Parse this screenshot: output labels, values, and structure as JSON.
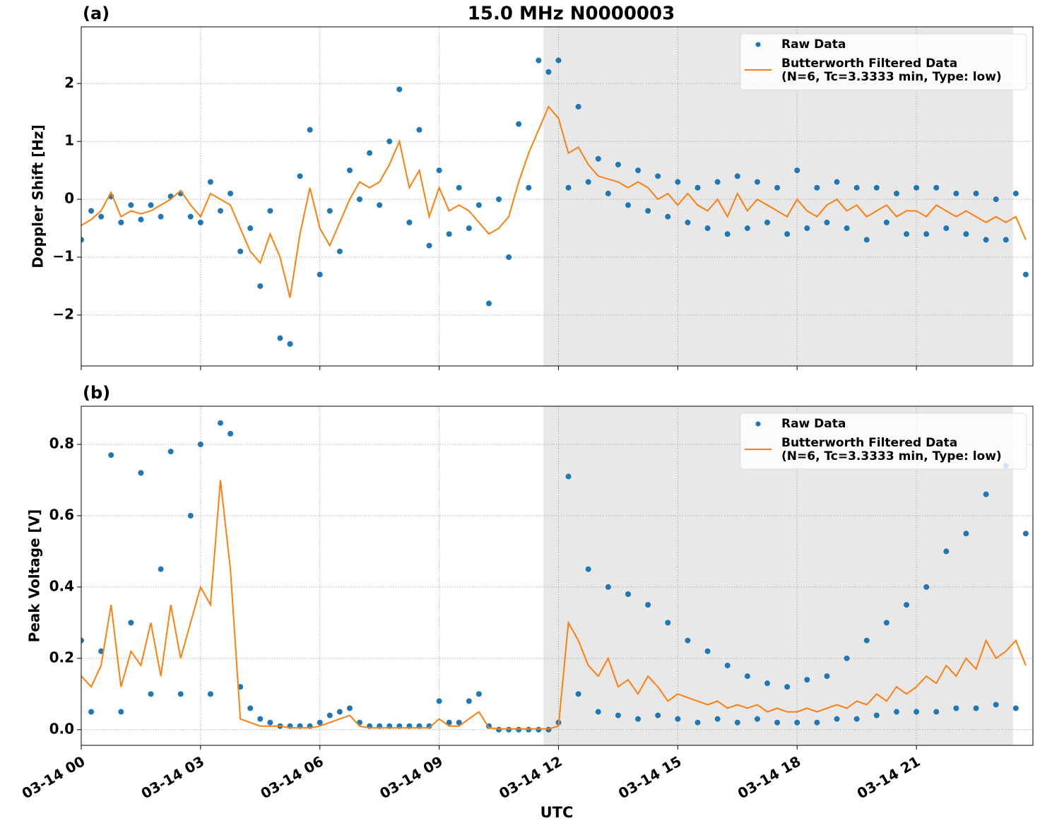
{
  "chart_data": [
    {
      "type": "line",
      "title": "15.0 MHz N0000003",
      "label": "(a)",
      "ylabel": "Doppler Shift [Hz]",
      "xlim": [
        0,
        23.93
      ],
      "xticks": [
        0,
        3,
        6,
        9,
        12,
        15,
        18,
        21
      ],
      "ylim": [
        -2.88,
        2.98
      ],
      "yticks": [
        {
          "value": -2,
          "label": "−2"
        },
        {
          "value": -1,
          "label": "−1"
        },
        0,
        1,
        2
      ],
      "grid": true,
      "legend": "upper right",
      "shaded_span": [
        11.62,
        23.43
      ],
      "shade_color": "#e8e8e8",
      "x": [
        0,
        0.25,
        0.5,
        0.75,
        1,
        1.25,
        1.5,
        1.75,
        2,
        2.25,
        2.5,
        2.75,
        3,
        3.25,
        3.5,
        3.75,
        4,
        4.25,
        4.5,
        4.75,
        5,
        5.25,
        5.5,
        5.75,
        6,
        6.25,
        6.5,
        6.75,
        7,
        7.25,
        7.5,
        7.75,
        8,
        8.25,
        8.5,
        8.75,
        9,
        9.25,
        9.5,
        9.75,
        10,
        10.25,
        10.5,
        10.75,
        11,
        11.25,
        11.5,
        11.75,
        12,
        12.25,
        12.5,
        12.75,
        13,
        13.25,
        13.5,
        13.75,
        14,
        14.25,
        14.5,
        14.75,
        15,
        15.25,
        15.5,
        15.75,
        16,
        16.25,
        16.5,
        16.75,
        17,
        17.25,
        17.5,
        17.75,
        18,
        18.25,
        18.5,
        18.75,
        19,
        19.25,
        19.5,
        19.75,
        20,
        20.25,
        20.5,
        20.75,
        21,
        21.25,
        21.5,
        21.75,
        22,
        22.25,
        22.5,
        22.75,
        23,
        23.25,
        23.5,
        23.75
      ],
      "series": [
        {
          "name": "Raw Data",
          "style": "scatter",
          "color": "#1f77b4",
          "values": [
            -0.7,
            -0.2,
            -0.3,
            0.05,
            -0.4,
            -0.1,
            -0.35,
            -0.1,
            -0.3,
            0.05,
            0.1,
            -0.3,
            -0.4,
            0.3,
            -0.2,
            0.1,
            -0.9,
            -0.5,
            -1.5,
            -0.2,
            -2.4,
            -2.5,
            0.4,
            1.2,
            -1.3,
            -0.2,
            -0.9,
            0.5,
            0.0,
            0.8,
            -0.1,
            1.0,
            1.9,
            -0.4,
            1.2,
            -0.8,
            0.5,
            -0.6,
            0.2,
            -0.5,
            -0.1,
            -1.8,
            0.0,
            -1.0,
            1.3,
            0.2,
            2.4,
            2.2,
            2.4,
            0.2,
            1.6,
            0.3,
            0.7,
            0.1,
            0.6,
            -0.1,
            0.5,
            -0.2,
            0.4,
            -0.3,
            0.3,
            -0.4,
            0.2,
            -0.5,
            0.3,
            -0.6,
            0.4,
            -0.5,
            0.3,
            -0.4,
            0.2,
            -0.6,
            0.5,
            -0.5,
            0.2,
            -0.4,
            0.3,
            -0.5,
            0.2,
            -0.7,
            0.2,
            -0.4,
            0.1,
            -0.6,
            0.2,
            -0.6,
            0.2,
            -0.5,
            0.1,
            -0.6,
            0.1,
            -0.7,
            0.0,
            -0.7,
            0.1,
            -1.3
          ]
        },
        {
          "name": "Butterworth Filtered Data\n(N=6, Tc=3.3333 min, Type: low)",
          "style": "line",
          "color": "#ff7f0e",
          "values": [
            -0.45,
            -0.35,
            -0.2,
            0.12,
            -0.3,
            -0.2,
            -0.25,
            -0.2,
            -0.1,
            0.0,
            0.15,
            -0.1,
            -0.3,
            0.1,
            0.0,
            -0.1,
            -0.5,
            -0.9,
            -1.1,
            -0.6,
            -1.0,
            -1.7,
            -0.6,
            0.2,
            -0.5,
            -0.8,
            -0.4,
            0.0,
            0.3,
            0.2,
            0.3,
            0.6,
            1.0,
            0.2,
            0.5,
            -0.3,
            0.2,
            -0.2,
            -0.1,
            -0.2,
            -0.4,
            -0.6,
            -0.5,
            -0.3,
            0.3,
            0.8,
            1.2,
            1.6,
            1.4,
            0.8,
            0.9,
            0.6,
            0.4,
            0.35,
            0.3,
            0.2,
            0.3,
            0.2,
            0.0,
            0.1,
            -0.1,
            0.1,
            -0.1,
            -0.2,
            0.0,
            -0.3,
            0.1,
            -0.2,
            0.0,
            -0.1,
            -0.2,
            -0.3,
            0.0,
            -0.2,
            -0.3,
            -0.1,
            0.0,
            -0.2,
            -0.1,
            -0.3,
            -0.2,
            -0.1,
            -0.3,
            -0.2,
            -0.2,
            -0.3,
            -0.1,
            -0.2,
            -0.3,
            -0.2,
            -0.3,
            -0.4,
            -0.3,
            -0.4,
            -0.3,
            -0.7
          ]
        }
      ]
    },
    {
      "type": "line",
      "label": "(b)",
      "ylabel": "Peak Voltage [V]",
      "xlabel": "UTC",
      "xlim": [
        0,
        23.93
      ],
      "xticks": [
        {
          "value": 0,
          "label": "03-14 00"
        },
        {
          "value": 3,
          "label": "03-14 03"
        },
        {
          "value": 6,
          "label": "03-14 06"
        },
        {
          "value": 9,
          "label": "03-14 09"
        },
        {
          "value": 12,
          "label": "03-14 12"
        },
        {
          "value": 15,
          "label": "03-14 15"
        },
        {
          "value": 18,
          "label": "03-14 18"
        },
        {
          "value": 21,
          "label": "03-14 21"
        }
      ],
      "ylim": [
        -0.044,
        0.907
      ],
      "yticks": [
        {
          "value": 0,
          "label": "0.0"
        },
        0.2,
        0.4,
        0.6,
        0.8
      ],
      "grid": true,
      "legend": "upper right",
      "shaded_span": [
        11.62,
        23.43
      ],
      "shade_color": "#e8e8e8",
      "x": [
        0,
        0.25,
        0.5,
        0.75,
        1,
        1.25,
        1.5,
        1.75,
        2,
        2.25,
        2.5,
        2.75,
        3,
        3.25,
        3.5,
        3.75,
        4,
        4.25,
        4.5,
        4.75,
        5,
        5.25,
        5.5,
        5.75,
        6,
        6.25,
        6.5,
        6.75,
        7,
        7.25,
        7.5,
        7.75,
        8,
        8.25,
        8.5,
        8.75,
        9,
        9.25,
        9.5,
        9.75,
        10,
        10.25,
        10.5,
        10.75,
        11,
        11.25,
        11.5,
        11.75,
        12,
        12.25,
        12.5,
        12.75,
        13,
        13.25,
        13.5,
        13.75,
        14,
        14.25,
        14.5,
        14.75,
        15,
        15.25,
        15.5,
        15.75,
        16,
        16.25,
        16.5,
        16.75,
        17,
        17.25,
        17.5,
        17.75,
        18,
        18.25,
        18.5,
        18.75,
        19,
        19.25,
        19.5,
        19.75,
        20,
        20.25,
        20.5,
        20.75,
        21,
        21.25,
        21.5,
        21.75,
        22,
        22.25,
        22.5,
        22.75,
        23,
        23.25,
        23.5,
        23.75
      ],
      "series": [
        {
          "name": "Raw Data",
          "style": "scatter",
          "color": "#1f77b4",
          "values": [
            0.25,
            0.05,
            0.22,
            0.77,
            0.05,
            0.3,
            0.72,
            0.1,
            0.45,
            0.78,
            0.1,
            0.6,
            0.8,
            0.1,
            0.86,
            0.83,
            0.12,
            0.06,
            0.03,
            0.02,
            0.01,
            0.01,
            0.01,
            0.01,
            0.02,
            0.04,
            0.05,
            0.06,
            0.02,
            0.01,
            0.01,
            0.01,
            0.01,
            0.01,
            0.01,
            0.01,
            0.08,
            0.02,
            0.02,
            0.08,
            0.1,
            0.01,
            0.0,
            0.0,
            0.0,
            0.0,
            0.0,
            0.0,
            0.02,
            0.71,
            0.1,
            0.45,
            0.05,
            0.4,
            0.04,
            0.38,
            0.03,
            0.35,
            0.04,
            0.3,
            0.03,
            0.25,
            0.02,
            0.22,
            0.03,
            0.18,
            0.02,
            0.15,
            0.03,
            0.13,
            0.02,
            0.12,
            0.02,
            0.14,
            0.02,
            0.15,
            0.03,
            0.2,
            0.03,
            0.25,
            0.04,
            0.3,
            0.05,
            0.35,
            0.05,
            0.4,
            0.05,
            0.5,
            0.06,
            0.55,
            0.06,
            0.66,
            0.07,
            0.74,
            0.06,
            0.55
          ]
        },
        {
          "name": "Butterworth Filtered Data\n(N=6, Tc=3.3333 min, Type: low)",
          "style": "line",
          "color": "#ff7f0e",
          "values": [
            0.15,
            0.12,
            0.18,
            0.35,
            0.12,
            0.22,
            0.18,
            0.3,
            0.15,
            0.35,
            0.2,
            0.3,
            0.4,
            0.35,
            0.7,
            0.45,
            0.03,
            0.02,
            0.01,
            0.01,
            0.01,
            0.005,
            0.005,
            0.005,
            0.01,
            0.02,
            0.03,
            0.04,
            0.01,
            0.005,
            0.005,
            0.005,
            0.005,
            0.005,
            0.005,
            0.005,
            0.03,
            0.01,
            0.01,
            0.03,
            0.05,
            0.005,
            0.002,
            0.002,
            0.002,
            0.002,
            0.002,
            0.002,
            0.01,
            0.3,
            0.25,
            0.18,
            0.15,
            0.2,
            0.12,
            0.14,
            0.1,
            0.15,
            0.12,
            0.08,
            0.1,
            0.09,
            0.08,
            0.07,
            0.08,
            0.06,
            0.07,
            0.06,
            0.07,
            0.05,
            0.06,
            0.05,
            0.05,
            0.06,
            0.05,
            0.06,
            0.07,
            0.06,
            0.08,
            0.07,
            0.1,
            0.08,
            0.12,
            0.1,
            0.12,
            0.15,
            0.13,
            0.18,
            0.15,
            0.2,
            0.17,
            0.25,
            0.2,
            0.22,
            0.25,
            0.18
          ]
        }
      ]
    }
  ]
}
